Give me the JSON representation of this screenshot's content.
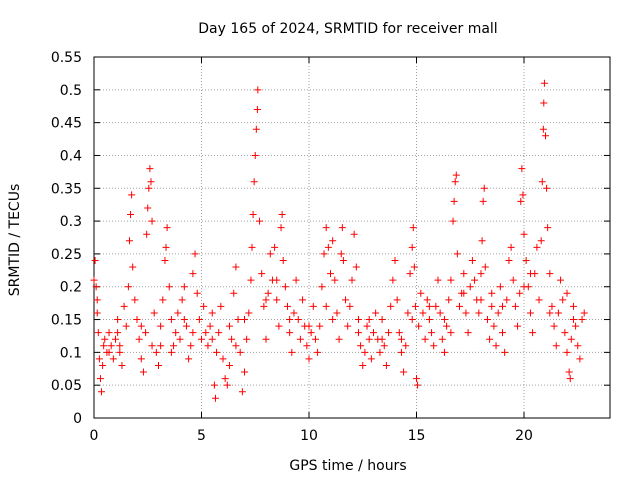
{
  "chart_data": {
    "type": "scatter",
    "title": "Day 165 of 2024, SRMTID for receiver mall",
    "xlabel": "GPS time / hours",
    "ylabel": "SRMTID / TECUs",
    "xlim": [
      0,
      24
    ],
    "ylim": [
      0,
      0.55
    ],
    "xticks": [
      0,
      5,
      10,
      15,
      20
    ],
    "xtick_labels": [
      "0",
      "5",
      "10",
      "15",
      "20"
    ],
    "yticks": [
      0,
      0.05,
      0.1,
      0.15,
      0.2,
      0.25,
      0.3,
      0.35,
      0.4,
      0.45,
      0.5,
      0.55
    ],
    "ytick_labels": [
      "0",
      "0.05",
      "0.1",
      "0.15",
      "0.2",
      "0.25",
      "0.3",
      "0.35",
      "0.4",
      "0.45",
      "0.5",
      "0.55"
    ],
    "grid": true,
    "marker": "+",
    "color": "#ff0000",
    "series": [
      {
        "name": "SRMTID",
        "points": [
          [
            0.0,
            0.21
          ],
          [
            0.05,
            0.24
          ],
          [
            0.1,
            0.2
          ],
          [
            0.15,
            0.18
          ],
          [
            0.2,
            0.13
          ],
          [
            0.25,
            0.09
          ],
          [
            0.3,
            0.06
          ],
          [
            0.35,
            0.04
          ],
          [
            0.4,
            0.08
          ],
          [
            0.45,
            0.11
          ],
          [
            0.5,
            0.12
          ],
          [
            0.6,
            0.1
          ],
          [
            0.7,
            0.13
          ],
          [
            0.8,
            0.11
          ],
          [
            0.9,
            0.09
          ],
          [
            1.0,
            0.12
          ],
          [
            1.1,
            0.15
          ],
          [
            1.2,
            0.1
          ],
          [
            1.3,
            0.08
          ],
          [
            1.4,
            0.17
          ],
          [
            1.5,
            0.14
          ],
          [
            1.6,
            0.2
          ],
          [
            1.65,
            0.27
          ],
          [
            1.7,
            0.31
          ],
          [
            1.75,
            0.34
          ],
          [
            1.8,
            0.23
          ],
          [
            1.9,
            0.18
          ],
          [
            2.0,
            0.15
          ],
          [
            2.1,
            0.12
          ],
          [
            2.2,
            0.09
          ],
          [
            2.3,
            0.07
          ],
          [
            2.4,
            0.13
          ],
          [
            2.45,
            0.28
          ],
          [
            2.5,
            0.32
          ],
          [
            2.55,
            0.35
          ],
          [
            2.6,
            0.38
          ],
          [
            2.65,
            0.36
          ],
          [
            2.7,
            0.3
          ],
          [
            2.8,
            0.16
          ],
          [
            2.9,
            0.1
          ],
          [
            3.0,
            0.08
          ],
          [
            3.1,
            0.14
          ],
          [
            3.2,
            0.18
          ],
          [
            3.3,
            0.24
          ],
          [
            3.35,
            0.26
          ],
          [
            3.4,
            0.29
          ],
          [
            3.5,
            0.2
          ],
          [
            3.6,
            0.15
          ],
          [
            3.7,
            0.11
          ],
          [
            3.8,
            0.13
          ],
          [
            3.9,
            0.16
          ],
          [
            4.0,
            0.12
          ],
          [
            4.1,
            0.18
          ],
          [
            4.2,
            0.2
          ],
          [
            4.3,
            0.14
          ],
          [
            4.4,
            0.09
          ],
          [
            4.5,
            0.11
          ],
          [
            4.6,
            0.22
          ],
          [
            4.7,
            0.25
          ],
          [
            4.8,
            0.19
          ],
          [
            4.9,
            0.15
          ],
          [
            5.0,
            0.12
          ],
          [
            5.1,
            0.17
          ],
          [
            5.2,
            0.13
          ],
          [
            5.3,
            0.11
          ],
          [
            5.4,
            0.14
          ],
          [
            5.5,
            0.12
          ],
          [
            5.6,
            0.05
          ],
          [
            5.65,
            0.03
          ],
          [
            5.7,
            0.1
          ],
          [
            5.8,
            0.13
          ],
          [
            5.9,
            0.17
          ],
          [
            6.0,
            0.09
          ],
          [
            6.1,
            0.06
          ],
          [
            6.2,
            0.05
          ],
          [
            6.3,
            0.08
          ],
          [
            6.4,
            0.12
          ],
          [
            6.5,
            0.19
          ],
          [
            6.6,
            0.23
          ],
          [
            6.7,
            0.15
          ],
          [
            6.8,
            0.1
          ],
          [
            6.9,
            0.04
          ],
          [
            7.0,
            0.07
          ],
          [
            7.1,
            0.12
          ],
          [
            7.2,
            0.16
          ],
          [
            7.3,
            0.21
          ],
          [
            7.35,
            0.26
          ],
          [
            7.4,
            0.31
          ],
          [
            7.45,
            0.36
          ],
          [
            7.5,
            0.4
          ],
          [
            7.55,
            0.44
          ],
          [
            7.6,
            0.47
          ],
          [
            7.62,
            0.5
          ],
          [
            7.7,
            0.3
          ],
          [
            7.8,
            0.22
          ],
          [
            7.9,
            0.17
          ],
          [
            8.0,
            0.12
          ],
          [
            8.1,
            0.19
          ],
          [
            8.2,
            0.25
          ],
          [
            8.3,
            0.21
          ],
          [
            8.4,
            0.26
          ],
          [
            8.5,
            0.18
          ],
          [
            8.6,
            0.14
          ],
          [
            8.7,
            0.29
          ],
          [
            8.75,
            0.31
          ],
          [
            8.8,
            0.24
          ],
          [
            8.9,
            0.2
          ],
          [
            9.0,
            0.17
          ],
          [
            9.1,
            0.13
          ],
          [
            9.2,
            0.1
          ],
          [
            9.3,
            0.16
          ],
          [
            9.4,
            0.21
          ],
          [
            9.5,
            0.15
          ],
          [
            9.6,
            0.12
          ],
          [
            9.7,
            0.18
          ],
          [
            9.8,
            0.14
          ],
          [
            9.9,
            0.11
          ],
          [
            10.0,
            0.09
          ],
          [
            10.1,
            0.13
          ],
          [
            10.2,
            0.17
          ],
          [
            10.3,
            0.12
          ],
          [
            10.4,
            0.1
          ],
          [
            10.5,
            0.14
          ],
          [
            10.6,
            0.2
          ],
          [
            10.7,
            0.25
          ],
          [
            10.8,
            0.29
          ],
          [
            10.9,
            0.26
          ],
          [
            11.0,
            0.22
          ],
          [
            11.1,
            0.27
          ],
          [
            11.2,
            0.21
          ],
          [
            11.3,
            0.16
          ],
          [
            11.4,
            0.12
          ],
          [
            11.5,
            0.25
          ],
          [
            11.55,
            0.29
          ],
          [
            11.6,
            0.24
          ],
          [
            11.7,
            0.18
          ],
          [
            11.8,
            0.14
          ],
          [
            11.9,
            0.17
          ],
          [
            12.0,
            0.21
          ],
          [
            12.1,
            0.28
          ],
          [
            12.2,
            0.23
          ],
          [
            12.3,
            0.15
          ],
          [
            12.4,
            0.11
          ],
          [
            12.5,
            0.08
          ],
          [
            12.6,
            0.1
          ],
          [
            12.7,
            0.14
          ],
          [
            12.8,
            0.12
          ],
          [
            12.9,
            0.09
          ],
          [
            13.0,
            0.13
          ],
          [
            13.1,
            0.16
          ],
          [
            13.2,
            0.12
          ],
          [
            13.3,
            0.1
          ],
          [
            13.4,
            0.15
          ],
          [
            13.5,
            0.11
          ],
          [
            13.6,
            0.08
          ],
          [
            13.7,
            0.13
          ],
          [
            13.8,
            0.17
          ],
          [
            13.9,
            0.21
          ],
          [
            14.0,
            0.24
          ],
          [
            14.1,
            0.18
          ],
          [
            14.2,
            0.13
          ],
          [
            14.3,
            0.1
          ],
          [
            14.4,
            0.07
          ],
          [
            14.5,
            0.11
          ],
          [
            14.6,
            0.16
          ],
          [
            14.7,
            0.22
          ],
          [
            14.8,
            0.26
          ],
          [
            14.85,
            0.29
          ],
          [
            14.9,
            0.23
          ],
          [
            14.95,
            0.17
          ],
          [
            15.0,
            0.06
          ],
          [
            15.05,
            0.05
          ],
          [
            15.1,
            0.14
          ],
          [
            15.2,
            0.19
          ],
          [
            15.3,
            0.16
          ],
          [
            15.4,
            0.12
          ],
          [
            15.5,
            0.18
          ],
          [
            15.6,
            0.15
          ],
          [
            15.7,
            0.13
          ],
          [
            15.8,
            0.11
          ],
          [
            15.9,
            0.17
          ],
          [
            16.0,
            0.21
          ],
          [
            16.1,
            0.16
          ],
          [
            16.2,
            0.12
          ],
          [
            16.3,
            0.1
          ],
          [
            16.4,
            0.14
          ],
          [
            16.5,
            0.18
          ],
          [
            16.6,
            0.21
          ],
          [
            16.7,
            0.3
          ],
          [
            16.75,
            0.33
          ],
          [
            16.8,
            0.36
          ],
          [
            16.85,
            0.37
          ],
          [
            16.9,
            0.25
          ],
          [
            17.0,
            0.17
          ],
          [
            17.1,
            0.19
          ],
          [
            17.2,
            0.22
          ],
          [
            17.3,
            0.16
          ],
          [
            17.4,
            0.13
          ],
          [
            17.5,
            0.2
          ],
          [
            17.6,
            0.24
          ],
          [
            17.7,
            0.21
          ],
          [
            17.8,
            0.18
          ],
          [
            17.9,
            0.16
          ],
          [
            18.0,
            0.22
          ],
          [
            18.05,
            0.27
          ],
          [
            18.1,
            0.33
          ],
          [
            18.15,
            0.35
          ],
          [
            18.2,
            0.23
          ],
          [
            18.3,
            0.15
          ],
          [
            18.4,
            0.12
          ],
          [
            18.5,
            0.17
          ],
          [
            18.6,
            0.14
          ],
          [
            18.7,
            0.11
          ],
          [
            18.8,
            0.16
          ],
          [
            18.9,
            0.2
          ],
          [
            19.0,
            0.13
          ],
          [
            19.1,
            0.1
          ],
          [
            19.2,
            0.18
          ],
          [
            19.3,
            0.24
          ],
          [
            19.4,
            0.26
          ],
          [
            19.5,
            0.21
          ],
          [
            19.6,
            0.17
          ],
          [
            19.7,
            0.14
          ],
          [
            19.8,
            0.19
          ],
          [
            19.85,
            0.33
          ],
          [
            19.9,
            0.38
          ],
          [
            19.95,
            0.34
          ],
          [
            20.0,
            0.28
          ],
          [
            20.1,
            0.24
          ],
          [
            20.2,
            0.2
          ],
          [
            20.3,
            0.16
          ],
          [
            20.4,
            0.13
          ],
          [
            20.5,
            0.22
          ],
          [
            20.6,
            0.26
          ],
          [
            20.7,
            0.18
          ],
          [
            20.8,
            0.27
          ],
          [
            20.85,
            0.36
          ],
          [
            20.9,
            0.44
          ],
          [
            20.92,
            0.48
          ],
          [
            20.95,
            0.51
          ],
          [
            21.0,
            0.43
          ],
          [
            21.05,
            0.35
          ],
          [
            21.1,
            0.29
          ],
          [
            21.2,
            0.22
          ],
          [
            21.3,
            0.17
          ],
          [
            21.4,
            0.14
          ],
          [
            21.5,
            0.11
          ],
          [
            21.6,
            0.16
          ],
          [
            21.7,
            0.21
          ],
          [
            21.8,
            0.18
          ],
          [
            21.9,
            0.13
          ],
          [
            22.0,
            0.1
          ],
          [
            22.1,
            0.07
          ],
          [
            22.15,
            0.06
          ],
          [
            22.2,
            0.12
          ],
          [
            22.3,
            0.17
          ],
          [
            22.4,
            0.14
          ],
          [
            22.5,
            0.11
          ],
          [
            22.6,
            0.09
          ],
          [
            22.7,
            0.15
          ],
          [
            22.8,
            0.16
          ],
          [
            0.15,
            0.16
          ],
          [
            0.7,
            0.1
          ],
          [
            1.2,
            0.11
          ],
          [
            2.2,
            0.14
          ],
          [
            3.1,
            0.11
          ],
          [
            3.6,
            0.1
          ],
          [
            4.2,
            0.15
          ],
          [
            5.5,
            0.16
          ],
          [
            6.3,
            0.14
          ],
          [
            7.0,
            0.15
          ],
          [
            8.0,
            0.18
          ],
          [
            9.1,
            0.15
          ],
          [
            10.0,
            0.14
          ],
          [
            11.1,
            0.15
          ],
          [
            12.3,
            0.13
          ],
          [
            13.4,
            0.12
          ],
          [
            14.3,
            0.12
          ],
          [
            15.6,
            0.17
          ],
          [
            16.3,
            0.15
          ],
          [
            17.2,
            0.19
          ],
          [
            18.0,
            0.18
          ],
          [
            19.0,
            0.17
          ],
          [
            20.0,
            0.2
          ],
          [
            21.2,
            0.16
          ],
          [
            22.3,
            0.15
          ],
          [
            1.1,
            0.13
          ],
          [
            2.7,
            0.11
          ],
          [
            4.6,
            0.13
          ],
          [
            6.6,
            0.11
          ],
          [
            8.5,
            0.21
          ],
          [
            10.8,
            0.17
          ],
          [
            12.8,
            0.15
          ],
          [
            14.8,
            0.15
          ],
          [
            16.6,
            0.13
          ],
          [
            18.5,
            0.19
          ],
          [
            20.3,
            0.22
          ],
          [
            22.0,
            0.19
          ]
        ]
      }
    ]
  }
}
